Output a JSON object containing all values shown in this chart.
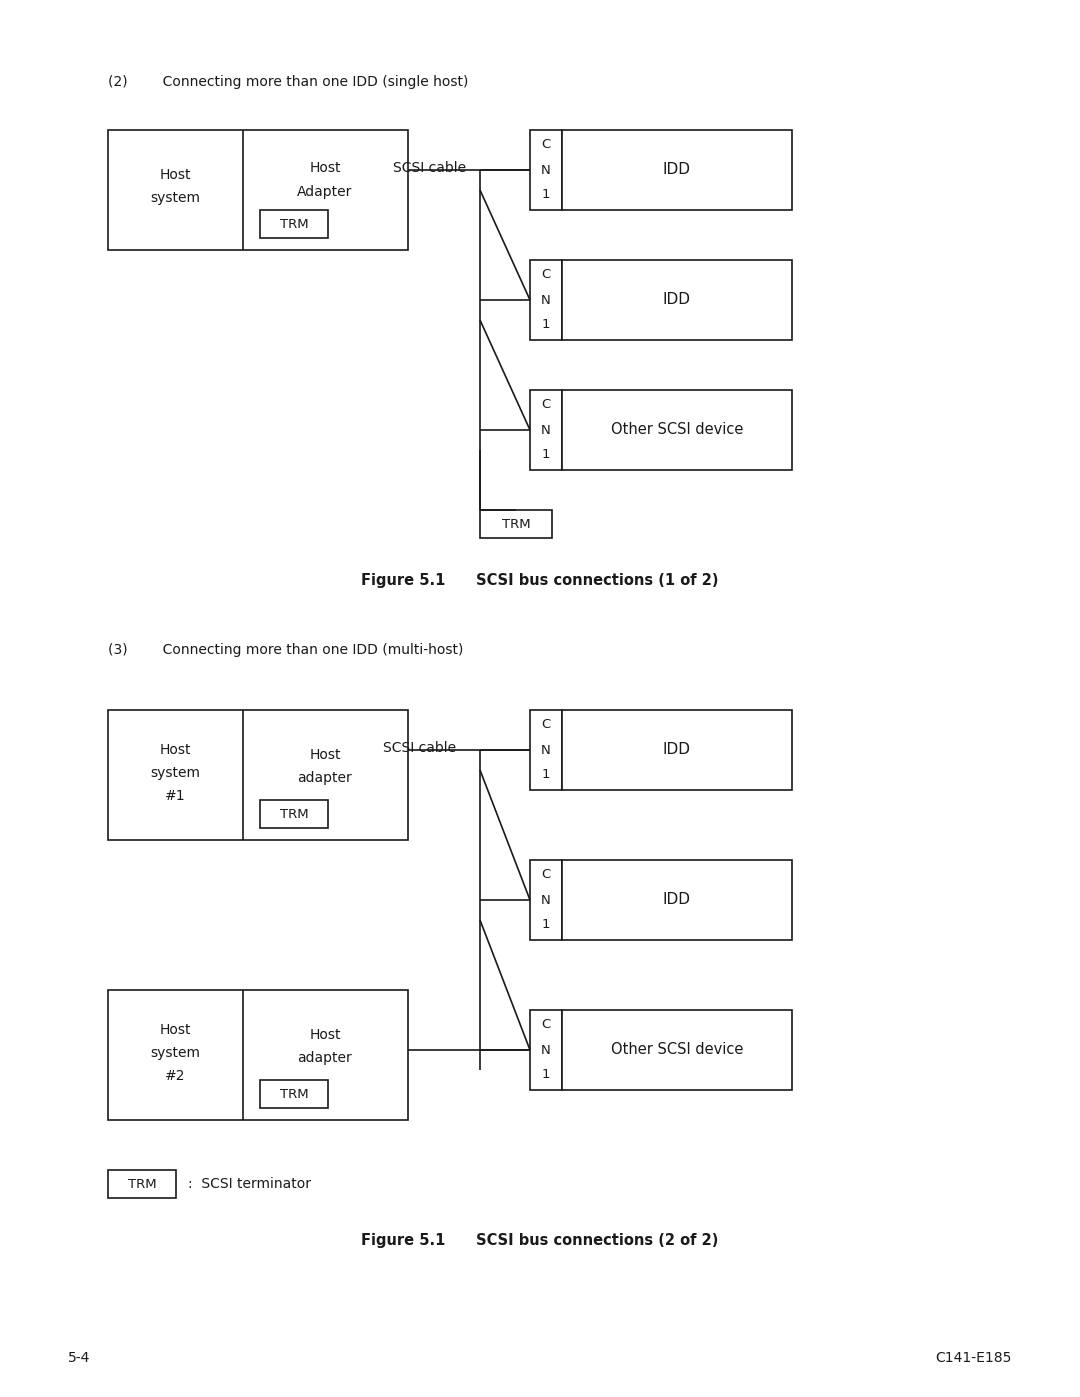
{
  "bg_color": "#ffffff",
  "text_color": "#1a1a1a",
  "line_color": "#1a1a1a",
  "title1": "(2)        Connecting more than one IDD (single host)",
  "title2": "(3)        Connecting more than one IDD (multi-host)",
  "fig1_caption": "Figure 5.1      SCSI bus connections (1 of 2)",
  "fig2_caption": "Figure 5.1      SCSI bus connections (2 of 2)",
  "footer_left": "5-4",
  "footer_right": "C141-E185",
  "scsi_cable_label": "SCSI cable"
}
